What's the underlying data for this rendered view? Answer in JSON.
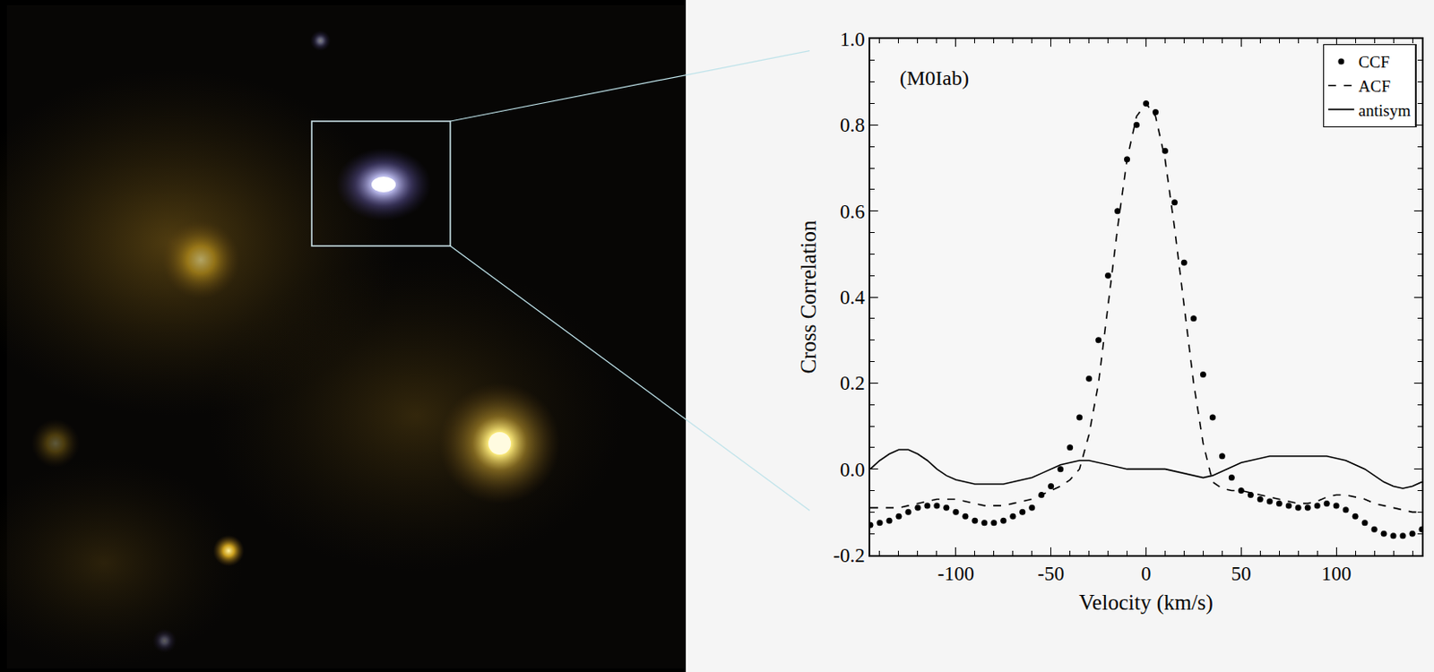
{
  "chart_data": {
    "type": "line",
    "annotation": "(M0Iab)",
    "x_label": "Velocity (km/s)",
    "y_label": "Cross Correlation",
    "x": [
      -145,
      -140,
      -135,
      -130,
      -125,
      -120,
      -115,
      -110,
      -105,
      -100,
      -95,
      -90,
      -85,
      -80,
      -75,
      -70,
      -65,
      -60,
      -55,
      -50,
      -45,
      -40,
      -35,
      -30,
      -25,
      -20,
      -15,
      -10,
      -5,
      0,
      5,
      10,
      15,
      20,
      25,
      30,
      35,
      40,
      45,
      50,
      55,
      60,
      65,
      70,
      75,
      80,
      85,
      90,
      95,
      100,
      105,
      110,
      115,
      120,
      125,
      130,
      135,
      140,
      145
    ],
    "series": [
      {
        "name": "CCF",
        "color": "#000000",
        "line_style": "dotted",
        "marker": "circle",
        "values": [
          -0.13,
          -0.125,
          -0.12,
          -0.11,
          -0.1,
          -0.09,
          -0.085,
          -0.085,
          -0.09,
          -0.1,
          -0.11,
          -0.12,
          -0.125,
          -0.125,
          -0.12,
          -0.11,
          -0.1,
          -0.09,
          -0.06,
          -0.04,
          0.0,
          0.05,
          0.12,
          0.21,
          0.3,
          0.45,
          0.6,
          0.72,
          0.8,
          0.85,
          0.83,
          0.74,
          0.62,
          0.48,
          0.35,
          0.22,
          0.12,
          0.03,
          -0.02,
          -0.05,
          -0.06,
          -0.07,
          -0.075,
          -0.08,
          -0.085,
          -0.09,
          -0.09,
          -0.085,
          -0.08,
          -0.085,
          -0.095,
          -0.11,
          -0.125,
          -0.14,
          -0.15,
          -0.155,
          -0.155,
          -0.15,
          -0.14
        ]
      },
      {
        "name": "ACF",
        "color": "#000000",
        "line_style": "dashed",
        "values": [
          -0.09,
          -0.09,
          -0.09,
          -0.09,
          -0.085,
          -0.08,
          -0.075,
          -0.07,
          -0.07,
          -0.07,
          -0.075,
          -0.08,
          -0.085,
          -0.085,
          -0.085,
          -0.08,
          -0.075,
          -0.07,
          -0.06,
          -0.05,
          -0.04,
          -0.025,
          0.0,
          0.08,
          0.2,
          0.38,
          0.56,
          0.72,
          0.82,
          0.85,
          0.82,
          0.72,
          0.56,
          0.38,
          0.2,
          0.06,
          -0.03,
          -0.045,
          -0.05,
          -0.05,
          -0.055,
          -0.06,
          -0.065,
          -0.07,
          -0.075,
          -0.08,
          -0.08,
          -0.075,
          -0.065,
          -0.06,
          -0.06,
          -0.065,
          -0.07,
          -0.08,
          -0.085,
          -0.09,
          -0.095,
          -0.1,
          -0.1
        ]
      },
      {
        "name": "antisym",
        "color": "#000000",
        "line_style": "solid",
        "values": [
          0.0,
          0.02,
          0.035,
          0.045,
          0.045,
          0.035,
          0.02,
          0.0,
          -0.015,
          -0.025,
          -0.03,
          -0.035,
          -0.035,
          -0.035,
          -0.035,
          -0.03,
          -0.025,
          -0.02,
          -0.01,
          0.0,
          0.01,
          0.015,
          0.02,
          0.02,
          0.015,
          0.01,
          0.005,
          0.0,
          0.0,
          0.0,
          0.0,
          0.0,
          -0.005,
          -0.01,
          -0.015,
          -0.02,
          -0.015,
          -0.005,
          0.005,
          0.015,
          0.02,
          0.025,
          0.03,
          0.03,
          0.03,
          0.03,
          0.03,
          0.03,
          0.03,
          0.025,
          0.02,
          0.01,
          0.0,
          -0.015,
          -0.03,
          -0.04,
          -0.045,
          -0.04,
          -0.03
        ]
      }
    ],
    "xlim": [
      -145,
      145
    ],
    "xticks": [
      -100,
      -50,
      0,
      50,
      100
    ],
    "ylim": [
      -0.2,
      1.0
    ],
    "yticks": [
      -0.2,
      {
        "value": 0,
        "label": "0.0"
      },
      0.2,
      0.4,
      0.6,
      0.8,
      {
        "value": 1,
        "label": "1.0"
      }
    ],
    "grid": false,
    "legend": "top-right"
  }
}
